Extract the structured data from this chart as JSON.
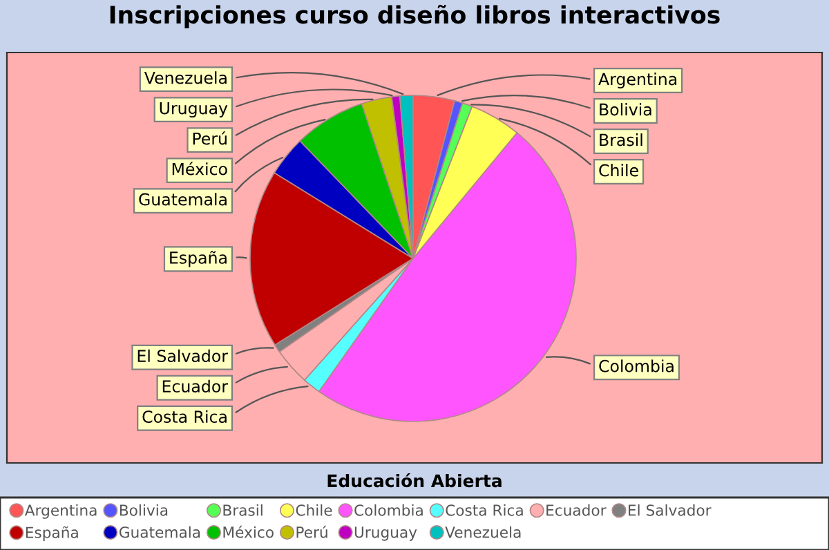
{
  "chart_data": {
    "type": "pie",
    "title": "Inscripciones curso diseño libros interactivos",
    "legend_title": "Educación Abierta",
    "legend": "bottom",
    "categories": [
      "Argentina",
      "Bolivia",
      "Brasil",
      "Chile",
      "Colombia",
      "Costa Rica",
      "Ecuador",
      "El Salvador",
      "España",
      "Guatemala",
      "México",
      "Perú",
      "Uruguay",
      "Venezuela"
    ],
    "values": [
      4.1,
      0.8,
      1.0,
      5.1,
      48.8,
      1.8,
      3.7,
      0.8,
      17.7,
      4.0,
      7.1,
      3.0,
      0.8,
      1.3
    ],
    "colors": [
      "#ff5555",
      "#5555ff",
      "#55ff55",
      "#ffff55",
      "#ff55ff",
      "#55ffff",
      "#ffafaf",
      "#808080",
      "#c00000",
      "#0000c0",
      "#00c000",
      "#c0c000",
      "#c000c0",
      "#00c0c0"
    ]
  }
}
